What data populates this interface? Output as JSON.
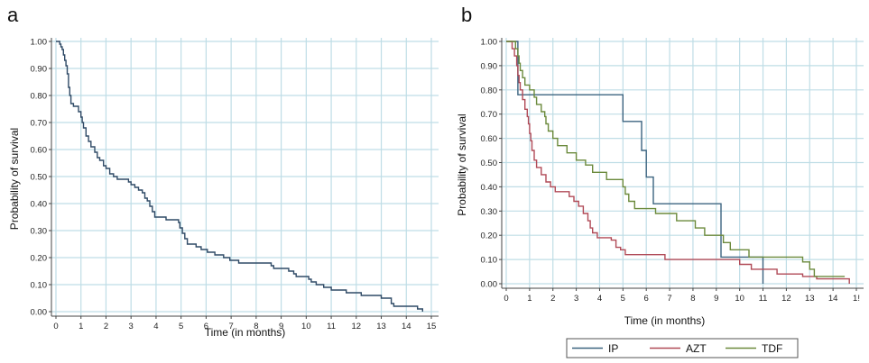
{
  "chart_data": [
    {
      "panel": "a",
      "type": "line",
      "xlabel": "Time (in months)",
      "ylabel": "Probability of survival",
      "xlim": [
        0,
        15
      ],
      "ylim": [
        0,
        1
      ],
      "xticks": [
        "0",
        "1",
        "2",
        "3",
        "4",
        "5",
        "6",
        "7",
        "8",
        "9",
        "10",
        "11",
        "12",
        "13",
        "14",
        "15"
      ],
      "yticks": [
        "0.00",
        "0.10",
        "0.20",
        "0.30",
        "0.40",
        "0.50",
        "0.60",
        "0.70",
        "0.80",
        "0.90",
        "1.00"
      ],
      "grid": true,
      "series": [
        {
          "color": "#2f4a66",
          "step": true,
          "points": [
            [
              0,
              1.0
            ],
            [
              0.15,
              0.99
            ],
            [
              0.2,
              0.98
            ],
            [
              0.25,
              0.97
            ],
            [
              0.3,
              0.95
            ],
            [
              0.35,
              0.93
            ],
            [
              0.4,
              0.91
            ],
            [
              0.45,
              0.88
            ],
            [
              0.5,
              0.83
            ],
            [
              0.55,
              0.8
            ],
            [
              0.6,
              0.77
            ],
            [
              0.7,
              0.76
            ],
            [
              0.9,
              0.74
            ],
            [
              1.0,
              0.72
            ],
            [
              1.05,
              0.7
            ],
            [
              1.1,
              0.68
            ],
            [
              1.2,
              0.65
            ],
            [
              1.3,
              0.63
            ],
            [
              1.4,
              0.61
            ],
            [
              1.55,
              0.59
            ],
            [
              1.65,
              0.57
            ],
            [
              1.75,
              0.56
            ],
            [
              1.9,
              0.54
            ],
            [
              2.0,
              0.53
            ],
            [
              2.15,
              0.51
            ],
            [
              2.3,
              0.5
            ],
            [
              2.45,
              0.49
            ],
            [
              2.9,
              0.48
            ],
            [
              3.0,
              0.47
            ],
            [
              3.15,
              0.46
            ],
            [
              3.3,
              0.45
            ],
            [
              3.45,
              0.44
            ],
            [
              3.55,
              0.42
            ],
            [
              3.65,
              0.41
            ],
            [
              3.75,
              0.39
            ],
            [
              3.85,
              0.37
            ],
            [
              3.95,
              0.35
            ],
            [
              4.4,
              0.34
            ],
            [
              4.9,
              0.33
            ],
            [
              4.95,
              0.31
            ],
            [
              5.05,
              0.29
            ],
            [
              5.15,
              0.27
            ],
            [
              5.25,
              0.25
            ],
            [
              5.6,
              0.24
            ],
            [
              5.8,
              0.23
            ],
            [
              6.05,
              0.22
            ],
            [
              6.35,
              0.21
            ],
            [
              6.7,
              0.2
            ],
            [
              6.95,
              0.19
            ],
            [
              7.3,
              0.18
            ],
            [
              8.6,
              0.17
            ],
            [
              8.7,
              0.16
            ],
            [
              9.3,
              0.15
            ],
            [
              9.5,
              0.14
            ],
            [
              9.6,
              0.13
            ],
            [
              10.1,
              0.12
            ],
            [
              10.2,
              0.11
            ],
            [
              10.4,
              0.1
            ],
            [
              10.7,
              0.09
            ],
            [
              11.0,
              0.08
            ],
            [
              11.6,
              0.07
            ],
            [
              12.2,
              0.06
            ],
            [
              13.0,
              0.05
            ],
            [
              13.4,
              0.03
            ],
            [
              13.5,
              0.02
            ],
            [
              14.0,
              0.02
            ],
            [
              14.45,
              0.01
            ],
            [
              14.6,
              0.01
            ],
            [
              14.65,
              0.0
            ]
          ]
        }
      ]
    },
    {
      "panel": "b",
      "type": "line",
      "xlabel": "Time (in months)",
      "ylabel": "Probability of survival",
      "xlim": [
        0,
        15
      ],
      "ylim": [
        0,
        1
      ],
      "xticks": [
        "0",
        "1",
        "2",
        "3",
        "4",
        "5",
        "6",
        "7",
        "8",
        "9",
        "10",
        "11",
        "12",
        "13",
        "14",
        "1!"
      ],
      "yticks": [
        "0.00",
        "0.10",
        "0.20",
        "0.30",
        "0.40",
        "0.50",
        "0.60",
        "0.70",
        "0.80",
        "0.90",
        "1.00"
      ],
      "grid": true,
      "legend_position": "bottom",
      "series": [
        {
          "name": "IP",
          "color": "#3c6480",
          "step": true,
          "points": [
            [
              0,
              1.0
            ],
            [
              0.5,
              0.78
            ],
            [
              5.0,
              0.67
            ],
            [
              5.8,
              0.55
            ],
            [
              6.0,
              0.44
            ],
            [
              6.3,
              0.33
            ],
            [
              9.2,
              0.11
            ],
            [
              11.0,
              0.11
            ],
            [
              11.0,
              0.0
            ]
          ]
        },
        {
          "name": "AZT",
          "color": "#b04a57",
          "step": true,
          "points": [
            [
              0,
              1.0
            ],
            [
              0.25,
              0.97
            ],
            [
              0.35,
              0.94
            ],
            [
              0.45,
              0.9
            ],
            [
              0.5,
              0.86
            ],
            [
              0.55,
              0.83
            ],
            [
              0.6,
              0.8
            ],
            [
              0.7,
              0.76
            ],
            [
              0.8,
              0.72
            ],
            [
              0.9,
              0.69
            ],
            [
              0.95,
              0.66
            ],
            [
              1.0,
              0.62
            ],
            [
              1.05,
              0.59
            ],
            [
              1.1,
              0.55
            ],
            [
              1.2,
              0.51
            ],
            [
              1.3,
              0.48
            ],
            [
              1.5,
              0.45
            ],
            [
              1.7,
              0.42
            ],
            [
              1.9,
              0.4
            ],
            [
              2.1,
              0.38
            ],
            [
              2.7,
              0.36
            ],
            [
              2.9,
              0.34
            ],
            [
              3.1,
              0.32
            ],
            [
              3.3,
              0.29
            ],
            [
              3.5,
              0.26
            ],
            [
              3.6,
              0.23
            ],
            [
              3.7,
              0.21
            ],
            [
              3.9,
              0.19
            ],
            [
              4.5,
              0.18
            ],
            [
              4.7,
              0.15
            ],
            [
              4.9,
              0.14
            ],
            [
              5.1,
              0.12
            ],
            [
              6.8,
              0.1
            ],
            [
              9.3,
              0.1
            ],
            [
              10.0,
              0.08
            ],
            [
              10.5,
              0.06
            ],
            [
              11.2,
              0.06
            ],
            [
              11.6,
              0.04
            ],
            [
              12.7,
              0.03
            ],
            [
              13.3,
              0.02
            ],
            [
              14.3,
              0.02
            ],
            [
              14.6,
              0.02
            ],
            [
              14.7,
              0.0
            ]
          ]
        },
        {
          "name": "TDF",
          "color": "#6b8a3c",
          "step": true,
          "points": [
            [
              0,
              1.0
            ],
            [
              0.4,
              0.97
            ],
            [
              0.5,
              0.94
            ],
            [
              0.55,
              0.91
            ],
            [
              0.6,
              0.88
            ],
            [
              0.7,
              0.85
            ],
            [
              0.8,
              0.82
            ],
            [
              1.0,
              0.8
            ],
            [
              1.2,
              0.77
            ],
            [
              1.3,
              0.74
            ],
            [
              1.5,
              0.71
            ],
            [
              1.65,
              0.69
            ],
            [
              1.7,
              0.66
            ],
            [
              1.8,
              0.63
            ],
            [
              2.0,
              0.6
            ],
            [
              2.2,
              0.57
            ],
            [
              2.6,
              0.54
            ],
            [
              3.0,
              0.51
            ],
            [
              3.4,
              0.49
            ],
            [
              3.7,
              0.46
            ],
            [
              4.3,
              0.43
            ],
            [
              5.0,
              0.4
            ],
            [
              5.1,
              0.37
            ],
            [
              5.25,
              0.34
            ],
            [
              5.5,
              0.31
            ],
            [
              6.4,
              0.29
            ],
            [
              7.3,
              0.26
            ],
            [
              8.1,
              0.23
            ],
            [
              8.5,
              0.2
            ],
            [
              9.3,
              0.17
            ],
            [
              9.6,
              0.14
            ],
            [
              10.4,
              0.11
            ],
            [
              11.2,
              0.11
            ],
            [
              12.7,
              0.09
            ],
            [
              13.0,
              0.06
            ],
            [
              13.2,
              0.03
            ],
            [
              14.3,
              0.03
            ],
            [
              14.5,
              0.03
            ]
          ]
        }
      ]
    }
  ]
}
